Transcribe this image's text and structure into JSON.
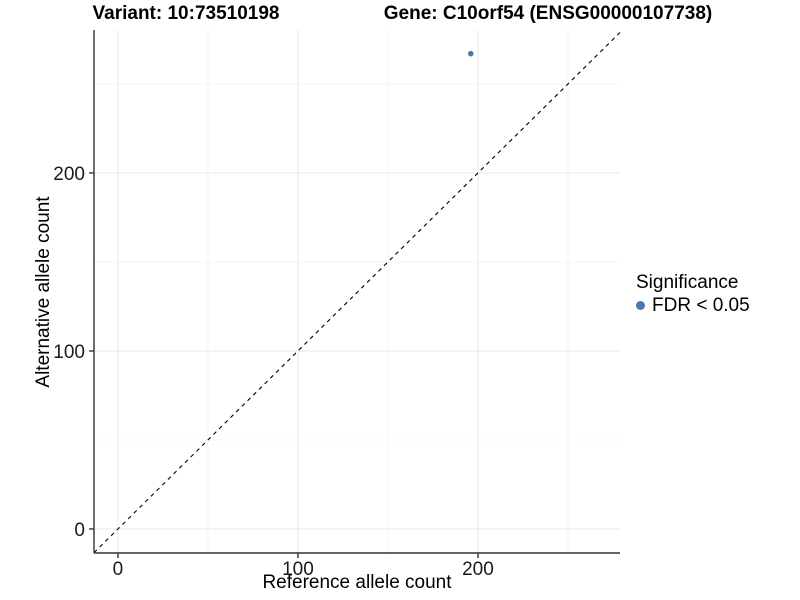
{
  "titles": {
    "left": "Variant: 10:73510198",
    "right": "Gene: C10orf54 (ENSG00000107738)"
  },
  "chart_data": {
    "type": "scatter",
    "xlabel": "Reference allele count",
    "ylabel": "Alternative allele count",
    "x_ticks": [
      0,
      100,
      200
    ],
    "y_ticks": [
      0,
      100,
      200
    ],
    "minor_ticks_x": [
      50,
      150,
      250
    ],
    "minor_ticks_y": [
      50,
      150,
      250
    ],
    "xlim": [
      -13.3,
      278.9
    ],
    "ylim": [
      -13.5,
      280.3
    ],
    "grid": true,
    "identity_line": {
      "equation": "y = x",
      "style": "dashed",
      "color": "#000000"
    },
    "points": [
      {
        "x": 196,
        "y": 267,
        "series": "FDR < 0.05"
      }
    ],
    "legend": {
      "title": "Significance",
      "position": "right",
      "entries": [
        {
          "label": "FDR < 0.05",
          "color": "#4579ae"
        }
      ]
    },
    "colors": {
      "point": "#4579ae",
      "grid_major": "#e9e9e9",
      "grid_minor": "#f4f4f4",
      "axis_line": "#333333",
      "tick_text": "#1a1a1a"
    }
  }
}
